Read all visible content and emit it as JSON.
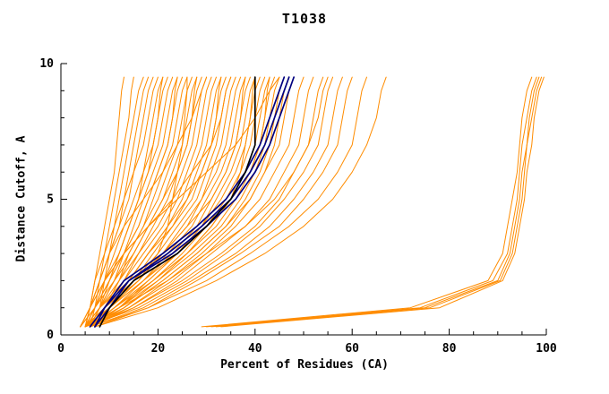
{
  "chart_data": {
    "type": "line",
    "title": "T1038",
    "xlabel": "Percent of Residues (CA)",
    "ylabel": "Distance Cutoff, A",
    "xlim": [
      0,
      100
    ],
    "ylim": [
      0,
      10
    ],
    "x_major_ticks": [
      0,
      20,
      40,
      60,
      80,
      100
    ],
    "x_minor_step": 5,
    "y_major_ticks": [
      0,
      5,
      10
    ],
    "y_minor_step": 1,
    "grid": false,
    "legend": "none",
    "colors": {
      "ensemble": "#ff8c00",
      "reference": "#000080",
      "baseline": "#000000",
      "axis": "#000000"
    },
    "y_grid": [
      0.3,
      1,
      2,
      3,
      4,
      5,
      6,
      7,
      8,
      9,
      9.5
    ],
    "series": [
      {
        "id": "orange-01",
        "color": "#ff8c00",
        "width": 1,
        "x": [
          5,
          6,
          7,
          8,
          9,
          10,
          11,
          11.5,
          12,
          12.5,
          13
        ]
      },
      {
        "id": "orange-02",
        "color": "#ff8c00",
        "width": 1,
        "x": [
          5,
          6,
          7,
          9,
          10,
          11,
          12,
          13,
          14,
          14.5,
          15
        ]
      },
      {
        "id": "orange-03",
        "color": "#ff8c00",
        "width": 1,
        "x": [
          4,
          6,
          8,
          9,
          11,
          12,
          13,
          14,
          15,
          16,
          17
        ]
      },
      {
        "id": "orange-04",
        "color": "#ff8c00",
        "width": 1,
        "x": [
          6,
          7,
          8,
          10,
          11,
          13,
          14,
          15,
          16,
          17,
          18
        ]
      },
      {
        "id": "orange-05",
        "color": "#ff8c00",
        "width": 1,
        "x": [
          5,
          7,
          9,
          10,
          12,
          13,
          15,
          16,
          17,
          18,
          19
        ]
      },
      {
        "id": "orange-06",
        "color": "#ff8c00",
        "width": 1,
        "x": [
          5,
          6,
          8,
          10,
          12,
          14,
          15,
          17,
          18,
          19,
          20
        ]
      },
      {
        "id": "orange-07",
        "color": "#ff8c00",
        "width": 1,
        "x": [
          6,
          8,
          9,
          11,
          13,
          15,
          17,
          18,
          19,
          20,
          21
        ]
      },
      {
        "id": "orange-08",
        "color": "#ff8c00",
        "width": 1,
        "x": [
          5,
          7,
          10,
          12,
          14,
          16,
          17,
          19,
          20,
          21,
          22
        ]
      },
      {
        "id": "orange-09",
        "color": "#ff8c00",
        "width": 1,
        "x": [
          4,
          6,
          9,
          12,
          14,
          16,
          18,
          20,
          21,
          22,
          23
        ]
      },
      {
        "id": "orange-10",
        "color": "#ff8c00",
        "width": 1,
        "x": [
          6,
          8,
          10,
          13,
          15,
          17,
          19,
          21,
          22,
          23,
          24
        ]
      },
      {
        "id": "orange-11",
        "color": "#ff8c00",
        "width": 1,
        "x": [
          5,
          7,
          10,
          13,
          16,
          18,
          20,
          22,
          23,
          24,
          25
        ]
      },
      {
        "id": "orange-12",
        "color": "#ff8c00",
        "width": 1,
        "x": [
          6,
          9,
          12,
          14,
          17,
          19,
          21,
          23,
          24,
          25,
          26
        ]
      },
      {
        "id": "orange-13",
        "color": "#ff8c00",
        "width": 1,
        "x": [
          5,
          8,
          11,
          14,
          17,
          20,
          22,
          24,
          25,
          26,
          27
        ]
      },
      {
        "id": "orange-14",
        "color": "#ff8c00",
        "width": 1,
        "x": [
          6,
          8,
          12,
          15,
          18,
          21,
          23,
          25,
          26,
          27,
          28
        ]
      },
      {
        "id": "orange-15",
        "color": "#ff8c00",
        "width": 1,
        "x": [
          5,
          9,
          12,
          16,
          19,
          22,
          24,
          26,
          27,
          28,
          29
        ]
      },
      {
        "id": "orange-16",
        "color": "#ff8c00",
        "width": 1,
        "x": [
          6,
          8,
          13,
          16,
          20,
          23,
          25,
          27,
          28,
          29,
          30
        ]
      },
      {
        "id": "orange-17",
        "color": "#ff8c00",
        "width": 1,
        "x": [
          5,
          9,
          13,
          17,
          21,
          24,
          26,
          28,
          29,
          30,
          31
        ]
      },
      {
        "id": "orange-18",
        "color": "#ff8c00",
        "width": 1,
        "x": [
          6,
          10,
          14,
          18,
          22,
          25,
          27,
          29,
          30,
          31,
          32
        ]
      },
      {
        "id": "orange-19",
        "color": "#ff8c00",
        "width": 1,
        "x": [
          5,
          8,
          14,
          18,
          22,
          26,
          28,
          30,
          31,
          32,
          33
        ]
      },
      {
        "id": "orange-20",
        "color": "#ff8c00",
        "width": 1,
        "x": [
          6,
          9,
          15,
          19,
          23,
          27,
          29,
          31,
          32,
          33,
          34
        ]
      },
      {
        "id": "orange-21",
        "color": "#ff8c00",
        "width": 1,
        "x": [
          5,
          10,
          15,
          20,
          24,
          28,
          30,
          32,
          33,
          34,
          35
        ]
      },
      {
        "id": "orange-22",
        "color": "#ff8c00",
        "width": 1,
        "x": [
          6,
          9,
          16,
          21,
          25,
          29,
          31,
          33,
          34,
          35,
          36
        ]
      },
      {
        "id": "orange-23",
        "color": "#ff8c00",
        "width": 1,
        "x": [
          5,
          10,
          16,
          21,
          26,
          29,
          32,
          34,
          35,
          36,
          37
        ]
      },
      {
        "id": "orange-24",
        "color": "#ff8c00",
        "width": 1,
        "x": [
          6,
          11,
          17,
          22,
          27,
          30,
          33,
          35,
          36,
          37,
          38
        ]
      },
      {
        "id": "orange-25",
        "color": "#ff8c00",
        "width": 1,
        "x": [
          5,
          10,
          17,
          23,
          28,
          31,
          34,
          36,
          37,
          38,
          39
        ]
      },
      {
        "id": "orange-26",
        "color": "#ff8c00",
        "width": 1,
        "x": [
          6,
          11,
          18,
          24,
          29,
          32,
          35,
          37,
          38,
          39,
          40
        ]
      },
      {
        "id": "orange-27",
        "color": "#ff8c00",
        "width": 1,
        "x": [
          5,
          12,
          18,
          24,
          29,
          33,
          36,
          38,
          39,
          40,
          41
        ]
      },
      {
        "id": "orange-28",
        "color": "#ff8c00",
        "width": 1,
        "x": [
          6,
          11,
          19,
          25,
          30,
          34,
          37,
          39,
          40,
          41,
          42
        ]
      },
      {
        "id": "orange-29",
        "color": "#ff8c00",
        "width": 1,
        "x": [
          5,
          12,
          19,
          26,
          31,
          35,
          38,
          40,
          41,
          42,
          43
        ]
      },
      {
        "id": "orange-30",
        "color": "#ff8c00",
        "width": 1,
        "x": [
          6,
          13,
          20,
          26,
          32,
          36,
          39,
          41,
          42,
          43,
          44
        ]
      },
      {
        "id": "orange-31",
        "color": "#ff8c00",
        "width": 1,
        "x": [
          5,
          12,
          20,
          27,
          33,
          37,
          40,
          42,
          43,
          44,
          45
        ]
      },
      {
        "id": "orange-32",
        "color": "#ff8c00",
        "width": 1,
        "x": [
          6,
          13,
          21,
          28,
          34,
          38,
          41,
          43,
          44,
          45,
          46
        ]
      },
      {
        "id": "orange-33",
        "color": "#ff8c00",
        "width": 1,
        "x": [
          5,
          14,
          22,
          29,
          35,
          39,
          42,
          45,
          46,
          47,
          48
        ]
      },
      {
        "id": "orange-34",
        "color": "#ff8c00",
        "width": 1,
        "x": [
          6,
          14,
          23,
          30,
          36,
          41,
          44,
          47,
          48,
          49,
          50
        ]
      },
      {
        "id": "orange-35",
        "color": "#ff8c00",
        "width": 1,
        "x": [
          5,
          15,
          24,
          31,
          38,
          43,
          46,
          49,
          50,
          51,
          52
        ]
      },
      {
        "id": "orange-36",
        "color": "#ff8c00",
        "width": 1,
        "x": [
          6,
          15,
          25,
          33,
          40,
          45,
          48,
          51,
          52,
          53,
          54
        ]
      },
      {
        "id": "orange-37",
        "color": "#ff8c00",
        "width": 1,
        "x": [
          5,
          16,
          26,
          34,
          41,
          46,
          50,
          53,
          54,
          55,
          56
        ]
      },
      {
        "id": "orange-38",
        "color": "#ff8c00",
        "width": 1,
        "x": [
          6,
          17,
          27,
          36,
          43,
          48,
          52,
          55,
          56,
          57,
          58
        ]
      },
      {
        "id": "orange-39",
        "color": "#ff8c00",
        "width": 1,
        "x": [
          7,
          18,
          28,
          37,
          45,
          50,
          54,
          57,
          58,
          59,
          60
        ]
      },
      {
        "id": "orange-40",
        "color": "#ff8c00",
        "width": 1,
        "x": [
          6,
          18,
          30,
          39,
          47,
          53,
          57,
          60,
          61,
          62,
          63
        ]
      },
      {
        "id": "orange-41",
        "color": "#ff8c00",
        "width": 1,
        "x": [
          7,
          20,
          32,
          42,
          50,
          56,
          60,
          63,
          65,
          66,
          67
        ]
      },
      {
        "id": "orange-42",
        "color": "#ff8c00",
        "width": 1,
        "x": [
          5,
          10,
          16,
          20,
          22,
          23,
          24,
          25,
          25.5,
          26,
          26
        ]
      },
      {
        "id": "orange-43",
        "color": "#ff8c00",
        "width": 1,
        "x": [
          5,
          7,
          9,
          13,
          18,
          24,
          30,
          36,
          40,
          43,
          45
        ]
      },
      {
        "id": "orange-44",
        "color": "#ff8c00",
        "width": 1,
        "x": [
          5,
          6,
          8,
          10,
          13,
          17,
          21,
          24,
          27,
          29,
          30
        ]
      },
      {
        "id": "orange-45",
        "color": "#ff8c00",
        "width": 1,
        "x": [
          6,
          12,
          22,
          30,
          38,
          44,
          48,
          51,
          53,
          54,
          55
        ]
      },
      {
        "id": "orange-46",
        "color": "#ff8c00",
        "width": 1,
        "x": [
          4,
          7,
          10,
          12,
          14,
          16,
          18,
          19,
          20,
          20.5,
          21
        ]
      },
      {
        "id": "orange-47",
        "color": "#ff8c00",
        "width": 1,
        "x": [
          5,
          8,
          11,
          13,
          16,
          18,
          20,
          22,
          23,
          23.5,
          24
        ]
      },
      {
        "id": "orange-48",
        "color": "#ff8c00",
        "width": 1,
        "x": [
          4,
          7,
          11,
          15,
          18,
          21,
          24,
          26,
          27,
          27.5,
          28
        ]
      },
      {
        "id": "orange-49",
        "color": "#ff8c00",
        "width": 1,
        "x": [
          6,
          10,
          14,
          18,
          23,
          26,
          29,
          31,
          32,
          32.5,
          33
        ]
      },
      {
        "id": "orange-50",
        "color": "#ff8c00",
        "width": 1,
        "x": [
          5,
          9,
          15,
          21,
          26,
          31,
          34,
          36,
          37,
          37.5,
          38
        ]
      },
      {
        "id": "orange-51",
        "color": "#ff8c00",
        "width": 1,
        "x": [
          6,
          10,
          17,
          24,
          30,
          35,
          39,
          41,
          42,
          42.5,
          43
        ]
      },
      {
        "id": "orange-52",
        "color": "#ff8c00",
        "width": 1,
        "x": [
          5,
          13,
          21,
          28,
          34,
          39,
          42,
          44,
          45,
          46,
          47
        ]
      },
      {
        "id": "orange-53",
        "color": "#ff8c00",
        "width": 1,
        "x": [
          4,
          6,
          9,
          13,
          18,
          23,
          27,
          31,
          33,
          34,
          35
        ]
      },
      {
        "id": "orange-54",
        "color": "#ff8c00",
        "width": 1,
        "x": [
          6,
          12,
          19,
          26,
          31,
          35,
          37,
          38,
          39,
          39.5,
          40
        ]
      },
      {
        "id": "orange-right-1",
        "color": "#ff8c00",
        "width": 1,
        "x": [
          29,
          72,
          88,
          91,
          92,
          93,
          94,
          94.5,
          95,
          96,
          97
        ]
      },
      {
        "id": "orange-right-2",
        "color": "#ff8c00",
        "width": 1,
        "x": [
          30,
          74,
          89,
          92,
          93,
          94,
          94.5,
          95,
          96,
          97,
          98
        ]
      },
      {
        "id": "orange-right-3",
        "color": "#ff8c00",
        "width": 1,
        "x": [
          31,
          75,
          90,
          92.5,
          93.5,
          94.5,
          95,
          96,
          96.5,
          97.5,
          98.5
        ]
      },
      {
        "id": "orange-right-4",
        "color": "#ff8c00",
        "width": 1,
        "x": [
          32,
          76,
          90.5,
          93,
          94,
          95,
          95.5,
          96,
          97,
          98,
          99
        ]
      },
      {
        "id": "orange-right-5",
        "color": "#ff8c00",
        "width": 1,
        "x": [
          33,
          78,
          91,
          93.5,
          94.5,
          95.5,
          96,
          97,
          97.5,
          98.5,
          99.5
        ]
      },
      {
        "id": "navy-1",
        "color": "#000080",
        "width": 1.7,
        "x": [
          7,
          9,
          13,
          21,
          28,
          34,
          38,
          41,
          43,
          45,
          46
        ]
      },
      {
        "id": "navy-2",
        "color": "#000080",
        "width": 1.7,
        "x": [
          7,
          10,
          14,
          22,
          29,
          35,
          39,
          42,
          44,
          46,
          47
        ]
      },
      {
        "id": "navy-3",
        "color": "#000080",
        "width": 1.7,
        "x": [
          6,
          9,
          14,
          23,
          30,
          36,
          40,
          43,
          45,
          47,
          48
        ]
      },
      {
        "id": "black-1",
        "color": "#000000",
        "width": 1.7,
        "x": [
          8,
          10,
          15,
          24,
          30,
          35,
          38,
          40,
          40,
          40,
          40
        ]
      }
    ]
  }
}
